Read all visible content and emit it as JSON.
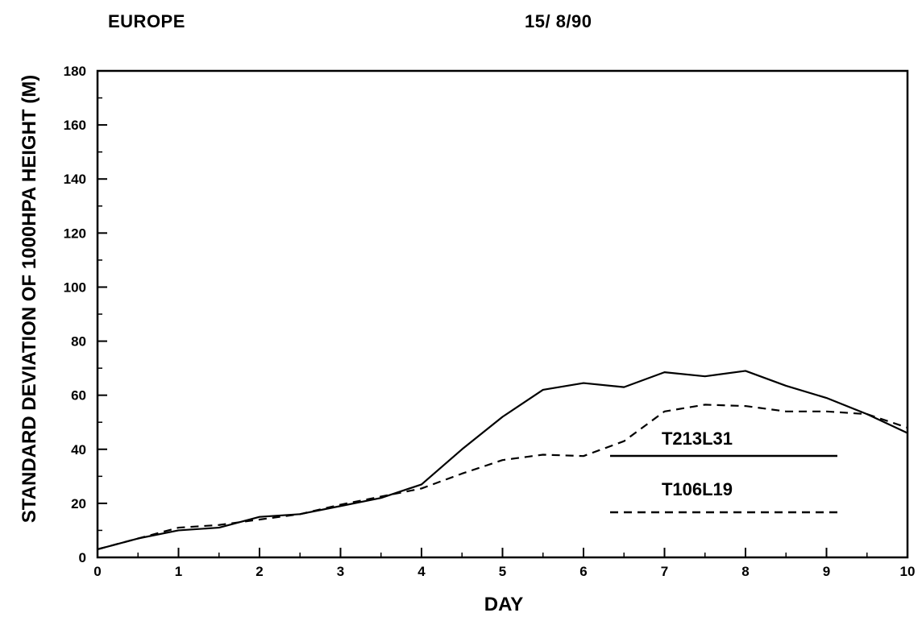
{
  "header": {
    "region": "EUROPE",
    "date": "15/ 8/90"
  },
  "chart_data": {
    "type": "line",
    "xlabel": "DAY",
    "ylabel": "STANDARD DEVIATION OF 1000HPA HEIGHT (M)",
    "xlim": [
      0,
      10
    ],
    "ylim": [
      0,
      180
    ],
    "xticks": [
      0,
      1,
      2,
      3,
      4,
      5,
      6,
      7,
      8,
      9,
      10
    ],
    "yticks": [
      0,
      20,
      40,
      60,
      80,
      100,
      120,
      140,
      160,
      180
    ],
    "grid": false,
    "legend_position": "lower-right",
    "x": [
      0,
      0.5,
      1,
      1.5,
      2,
      2.5,
      3,
      3.5,
      4,
      4.5,
      5,
      5.5,
      6,
      6.5,
      7,
      7.5,
      8,
      8.5,
      9,
      9.5,
      10
    ],
    "series": [
      {
        "name": "T213L31",
        "style": "solid",
        "color": "#000000",
        "values": [
          3,
          7,
          10,
          11,
          15,
          16,
          19,
          22,
          27,
          40,
          52,
          62,
          64.5,
          63,
          68.5,
          67,
          69,
          63.5,
          59,
          53,
          46
        ]
      },
      {
        "name": "T106L19",
        "style": "dashed",
        "color": "#000000",
        "values": [
          3,
          7,
          11,
          12,
          14,
          16,
          19.5,
          22.5,
          25.5,
          31,
          36,
          38,
          37.5,
          43,
          54,
          56.5,
          56,
          54,
          54,
          53,
          48
        ]
      }
    ]
  }
}
